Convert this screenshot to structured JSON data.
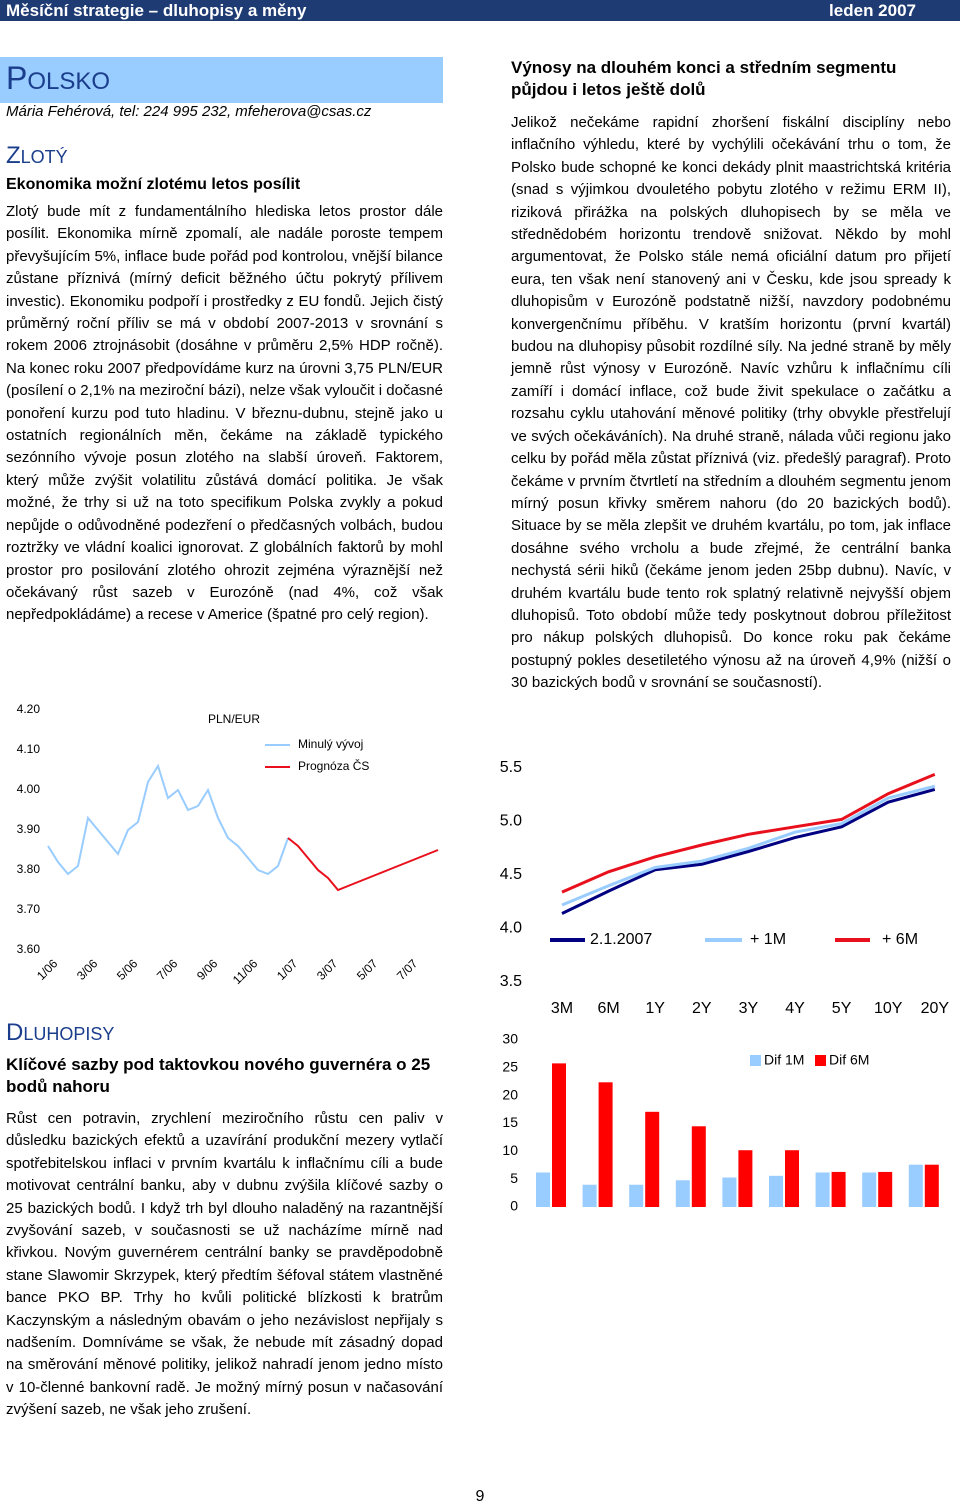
{
  "header": {
    "title": "Měsíční strategie – dluhopisy a měny",
    "date": "leden 2007"
  },
  "left": {
    "title": "POLSKO",
    "author": "Mária Fehérová, tel: 224 995 232, mfeherova@csas.cz",
    "section": "ZLOTÝ",
    "heading": "Ekonomika možní zlotému letos posílit",
    "paragraph": "Zlotý bude mít z fundamentálního hlediska letos prostor dále posílit. Ekonomika mírně zpomalí, ale nadále poroste tempem převyšujícím 5%, inflace bude pořád pod kontrolou, vnější bilance zůstane příznivá (mírný deficit běžného účtu pokrytý přílivem investic). Ekonomiku podpoří i prostředky z EU fondů. Jejich čistý průměrný roční příliv se má v období 2007-2013 v srovnání s rokem 2006 ztrojnásobit (dosáhne v průměru 2,5% HDP ročně). Na konec roku 2007 předpovídáme kurz na úrovni 3,75 PLN/EUR (posílení o 2,1% na meziroční bázi), nelze však vyloučit i dočasné ponoření kurzu pod tuto hladinu. V březnu-dubnu, stejně jako u ostatních regionálních měn, čekáme na základě typického sezónního vývoje posun zlotého na slabší úroveň. Faktorem, který může zvýšit volatilitu zůstává domácí politika. Je však možné, že trhy si už na toto specifikum Polska zvykly a pokud nepůjde o odůvodněné podezření o předčasných volbách, budou roztržky ve vládní koalici ignorovat. Z globálních faktorů by mohl prostor pro posilování zlotého ohrozit zejména výraznější než očekávaný růst sazeb v Eurozóně (nad 4%, což však nepředpokládáme) a recese v Americe (špatné pro celý region).",
    "section2": "DLUHOPISY",
    "heading2": "Klíčové sazby pod taktovkou nového guvernéra o 25 bodů nahoru",
    "paragraph2": "Růst cen potravin, zrychlení meziročního růstu cen paliv v důsledku bazických efektů a uzavírání produkční mezery vytlačí spotřebitelskou inflaci v prvním kvartálu k inflačnímu cíli a bude motivovat centrální banku, aby v dubnu zvýšila klíčové sazby o 25 bazických bodů. I když trh byl dlouho naladěný na razantnější zvyšování sazeb, v současnosti se už nacházíme mírně nad křivkou. Novým guvernérem centrální banky se pravděpodobně stane Slawomir Skrzypek, který předtím šéfoval státem vlastněné bance PKO BP. Trhy ho kvůli politické blízkosti k bratrům Kaczynským a následným obavám o jeho nezávislost nepřijaly s nadšením. Domníváme se však, že nebude mít zásadný dopad na směrování měnové politiky, jelikož nahradí jenom jedno místo v 10-členné bankovní radě. Je možný mírný posun v načasování zvýšení sazeb, ne však jeho zrušení."
  },
  "right": {
    "heading": "Výnosy na dlouhém konci a středním segmentu půjdou i letos ještě dolů",
    "paragraph": "Jelikož nečekáme rapidní zhoršení fiskální disciplíny nebo inflačního výhledu, které by vychýlili očekávání trhu o tom, že Polsko bude schopné ke konci dekády plnit maastrichtská kritéria (snad s výjimkou dvouletého pobytu zlotého v režimu ERM II), riziková přirážka na polských dluhopisech by se měla ve střednědobém horizontu trendově snižovat. Někdo by mohl argumentovat, že Polsko stále nemá oficiální datum pro přijetí eura, ten však není stanovený ani v Česku, kde jsou spready k dluhopisům v Eurozóně podstatně nižší, navzdory podobnému konvergenčnímu příběhu. V kratším horizontu (první kvartál) budou na dluhopisy působit rozdílné síly. Na jedné straně by měly jemně růst výnosy v Eurozóně. Navíc vzhůru k inflačnímu cíli zamíří i domácí inflace, což bude živit spekulace o začátku a rozsahu cyklu utahování měnové politiky (trhy obvykle přestřelují ve svých očekáváních). Na druhé straně, nálada vůči regionu jako celku by pořád měla zůstat příznivá (viz. předešlý paragraf). Proto čekáme v prvním čtvrtletí na středním a dlouhém segmentu jenom mírný posun křivky směrem nahoru (do 20 bazických bodů). Situace by se měla zlepšit ve druhém kvartálu, po tom, jak inflace dosáhne svého vrcholu a bude zřejmé, že centrální banka nechystá sérii hiků (čekáme jenom jeden 25bp dubnu). Navíc, v druhém kvartálu bude tento rok splatný relativně nejvyšší objem dluhopisů. Toto období může tedy poskytnout dobrou příležitost pro nákup polských dluhopisů. Do konce roku pak čekáme postupný pokles desetiletého výnosu až na úroveň 4,9% (nižší o 30 bazických bodů v srovnání se současností)."
  },
  "footer": {
    "page": "9"
  },
  "chart_data": [
    {
      "type": "line",
      "title": "PLN/EUR",
      "categories": [
        "1/06",
        null,
        null,
        null,
        "3/06",
        null,
        null,
        null,
        "5/06",
        null,
        null,
        null,
        "7/06",
        null,
        null,
        null,
        "9/06",
        null,
        null,
        null,
        "11/06",
        null,
        null,
        null,
        "1/07",
        null,
        null,
        null,
        "3/07",
        null,
        null,
        null,
        "5/07",
        null,
        null,
        null,
        "7/07",
        null,
        null,
        null
      ],
      "series": [
        {
          "name": "Minulý vývoj",
          "color": "#99ccff",
          "values": [
            3.86,
            3.82,
            3.79,
            3.81,
            3.93,
            3.9,
            3.87,
            3.84,
            3.9,
            3.92,
            4.02,
            4.06,
            3.98,
            4.0,
            3.95,
            3.96,
            4.0,
            3.93,
            3.88,
            3.86,
            3.83,
            3.8,
            3.79,
            3.81,
            3.88,
            null,
            null,
            null,
            null,
            null,
            null,
            null,
            null,
            null,
            null,
            null,
            null,
            null,
            null,
            null
          ]
        },
        {
          "name": "Prognóza ČS",
          "color": "#e8101c",
          "values": [
            null,
            null,
            null,
            null,
            null,
            null,
            null,
            null,
            null,
            null,
            null,
            null,
            null,
            null,
            null,
            null,
            null,
            null,
            null,
            null,
            null,
            null,
            null,
            null,
            3.88,
            3.86,
            3.83,
            3.8,
            3.78,
            3.75,
            3.76,
            3.77,
            3.78,
            3.79,
            3.8,
            3.81,
            3.82,
            3.83,
            3.84,
            3.85
          ]
        }
      ],
      "ylim": [
        3.6,
        4.2
      ],
      "yticks": [
        {
          "value": 4.2,
          "label": "4.20"
        },
        {
          "value": 4.1,
          "label": "4.10"
        },
        {
          "value": 4.0,
          "label": "4.00"
        },
        {
          "value": 3.9,
          "label": "3.90"
        },
        {
          "value": 3.8,
          "label": "3.80"
        },
        {
          "value": 3.7,
          "label": "3.70"
        },
        {
          "value": 3.6,
          "label": "3.60"
        }
      ]
    },
    {
      "type": "line",
      "categories": [
        "3M",
        "6M",
        "1Y",
        "2Y",
        "3Y",
        "4Y",
        "5Y",
        "10Y",
        "20Y"
      ],
      "series": [
        {
          "name": "2.1.2007",
          "color": "#000080",
          "values": [
            4.14,
            4.35,
            4.55,
            4.6,
            4.72,
            4.85,
            4.95,
            5.18,
            5.3
          ]
        },
        {
          "name": "+ 1M",
          "color": "#99ccff",
          "values": [
            4.22,
            4.4,
            4.57,
            4.63,
            4.75,
            4.9,
            4.98,
            5.22,
            5.33
          ]
        },
        {
          "name": "+ 6M",
          "color": "#e8101c",
          "values": [
            4.34,
            4.53,
            4.67,
            4.78,
            4.88,
            4.95,
            5.02,
            5.26,
            5.44
          ]
        }
      ],
      "ylim": [
        3.5,
        5.5
      ],
      "yticks": [
        5.5,
        {
          "value": 5,
          "label": "5.0"
        },
        4.5,
        {
          "value": 4,
          "label": "4.0"
        },
        3.5
      ]
    },
    {
      "type": "bar",
      "series": [
        {
          "name": "Dif 1M",
          "color": "#99ccff",
          "values": [
            6.2,
            4.0,
            4.0,
            4.8,
            5.3,
            5.6,
            6.2,
            6.2,
            7.6
          ]
        },
        {
          "name": "Dif 6M",
          "color": "#ff0000",
          "values": [
            25.8,
            22.4,
            17.1,
            14.5,
            10.2,
            10.2,
            6.3,
            6.3,
            7.6
          ]
        }
      ],
      "ylim": [
        0,
        30
      ],
      "yticks": [
        30,
        25,
        20,
        15,
        10,
        5,
        0
      ]
    }
  ]
}
